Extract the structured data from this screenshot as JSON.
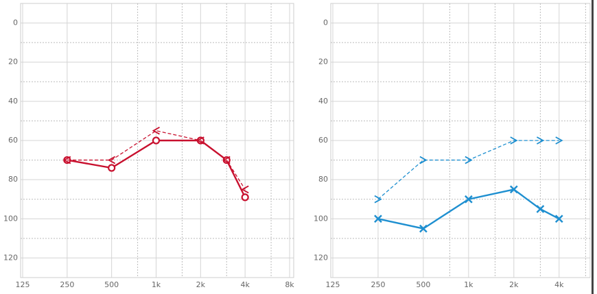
{
  "chart_data": [
    {
      "type": "line",
      "xscale": "log",
      "yinverted": true,
      "xlim": [
        125,
        8000
      ],
      "ylim": [
        -10,
        130
      ],
      "xticks": [
        125,
        250,
        500,
        {
          "value": 1000,
          "label": "1k"
        },
        {
          "value": 2000,
          "label": "2k"
        },
        {
          "value": 4000,
          "label": "4k"
        },
        {
          "value": 8000,
          "label": "8k"
        }
      ],
      "xminor": [
        750,
        1500,
        3000,
        6000
      ],
      "yticks": [
        0,
        20,
        40,
        60,
        80,
        100,
        120
      ],
      "yminor": [
        10,
        30,
        50,
        70,
        90,
        110
      ],
      "series": [
        {
          "color": "#c8102e",
          "line_style": "solid",
          "marker": "circle",
          "x": [
            250,
            500,
            1000,
            2000,
            3000,
            4000
          ],
          "values": [
            70,
            74,
            60,
            60,
            70,
            89
          ]
        },
        {
          "color": "#c8102e",
          "line_style": "dashed",
          "marker": "left",
          "x": [
            250,
            500,
            1000,
            2000,
            3000,
            4000
          ],
          "values": [
            70,
            70,
            55,
            60,
            70,
            85
          ]
        }
      ]
    },
    {
      "type": "line",
      "xscale": "log",
      "yinverted": true,
      "xlim": [
        125,
        6300
      ],
      "ylim": [
        -10,
        130
      ],
      "xticks": [
        125,
        250,
        500,
        {
          "value": 1000,
          "label": "1k"
        },
        {
          "value": 2000,
          "label": "2k"
        },
        {
          "value": 4000,
          "label": "4k"
        }
      ],
      "xminor": [
        750,
        1500,
        3000,
        6000
      ],
      "yticks": [
        0,
        20,
        40,
        60,
        80,
        100,
        120
      ],
      "yminor": [
        10,
        30,
        50,
        70,
        90,
        110
      ],
      "series": [
        {
          "color": "#1e8fd0",
          "line_style": "solid",
          "marker": "cross",
          "x": [
            250,
            500,
            1000,
            2000,
            3000,
            4000
          ],
          "values": [
            100,
            105,
            90,
            85,
            95,
            100
          ]
        },
        {
          "color": "#1e8fd0",
          "line_style": "dashed",
          "marker": "right",
          "x": [
            250,
            500,
            1000,
            2000,
            3000,
            4000
          ],
          "values": [
            90,
            70,
            70,
            60,
            60,
            60
          ]
        }
      ]
    }
  ]
}
